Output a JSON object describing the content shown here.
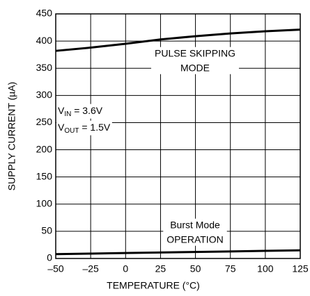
{
  "chart_data": {
    "type": "line",
    "xlabel": "TEMPERATURE (°C)",
    "ylabel": "SUPPLY CURRENT (µA)",
    "x": [
      -50,
      -25,
      0,
      25,
      50,
      75,
      100,
      125
    ],
    "series": [
      {
        "name": "PULSE SKIPPING MODE",
        "color": "#000000",
        "values": [
          382,
          388,
          395,
          403,
          409,
          414,
          418,
          421
        ]
      },
      {
        "name": "Burst Mode OPERATION",
        "color": "#000000",
        "values": [
          8,
          9,
          10,
          11,
          12,
          13,
          14,
          15
        ]
      }
    ],
    "xlim": [
      -50,
      125
    ],
    "xticks": [
      {
        "value": -50,
        "label": "–50"
      },
      {
        "value": -25,
        "label": "–25"
      },
      0,
      25,
      50,
      75,
      100,
      125
    ],
    "ylim": [
      0,
      450
    ],
    "yticks": [
      0,
      50,
      100,
      150,
      200,
      250,
      300,
      350,
      400,
      450
    ],
    "grid": true,
    "annotations": [
      {
        "lines": [
          "PULSE SKIPPING",
          "MODE"
        ]
      },
      {
        "lines": [
          "Burst Mode",
          "OPERATION"
        ]
      }
    ],
    "conditions": [
      {
        "parts": [
          "V",
          "IN",
          " = 3.6V"
        ]
      },
      {
        "parts": [
          "V",
          "OUT",
          " = 1.5V"
        ]
      }
    ]
  }
}
